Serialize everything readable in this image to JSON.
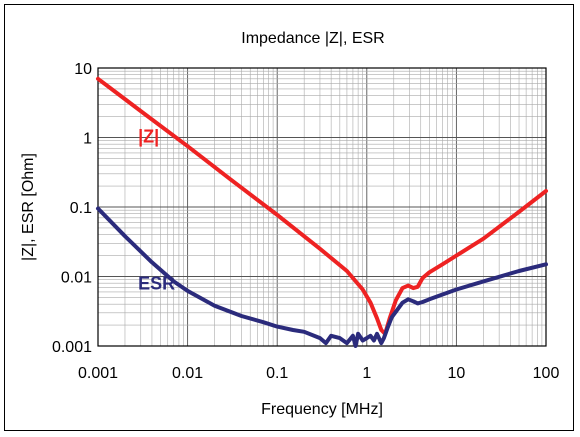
{
  "chart_data": {
    "type": "line",
    "title": "Impedance |Z|,  ESR",
    "xlabel": "Frequency [MHz]",
    "ylabel": "|Z|, ESR [Ohm]",
    "xscale": "log",
    "yscale": "log",
    "xlim": [
      0.001,
      100
    ],
    "ylim": [
      0.001,
      10
    ],
    "grid": true,
    "x_ticks": [
      "0.001",
      "0.01",
      "0.1",
      "1",
      "10",
      "100"
    ],
    "y_ticks": [
      "0.001",
      "0.01",
      "0.1",
      "1",
      "10"
    ],
    "series": [
      {
        "name": "|Z|",
        "color": "#ee2222",
        "x": [
          0.001,
          0.003,
          0.01,
          0.03,
          0.1,
          0.3,
          0.6,
          0.9,
          1.1,
          1.3,
          1.45,
          1.6,
          1.8,
          2.1,
          2.5,
          2.9,
          3.3,
          3.7,
          4.2,
          5,
          7,
          10,
          20,
          50,
          100
        ],
        "values": [
          7,
          2.4,
          0.75,
          0.25,
          0.077,
          0.025,
          0.012,
          0.0065,
          0.0042,
          0.0025,
          0.0017,
          0.0015,
          0.0025,
          0.0045,
          0.0068,
          0.0074,
          0.0068,
          0.0071,
          0.0095,
          0.0115,
          0.015,
          0.02,
          0.035,
          0.085,
          0.17
        ]
      },
      {
        "name": "ESR",
        "color": "#2b2b7c",
        "x": [
          0.001,
          0.002,
          0.004,
          0.007,
          0.01,
          0.02,
          0.04,
          0.07,
          0.1,
          0.15,
          0.2,
          0.3,
          0.35,
          0.4,
          0.5,
          0.6,
          0.7,
          0.75,
          0.8,
          0.9,
          1.0,
          1.1,
          1.2,
          1.3,
          1.45,
          1.55,
          1.7,
          1.9,
          2.1,
          2.5,
          2.9,
          3.3,
          3.7,
          4.2,
          5,
          7,
          10,
          20,
          50,
          100
        ],
        "values": [
          0.095,
          0.038,
          0.016,
          0.0085,
          0.0062,
          0.0038,
          0.0027,
          0.0022,
          0.0019,
          0.0017,
          0.0016,
          0.0013,
          0.0011,
          0.0014,
          0.0013,
          0.0011,
          0.0014,
          0.001,
          0.0015,
          0.0012,
          0.0013,
          0.0014,
          0.0012,
          0.0015,
          0.0011,
          0.0013,
          0.0018,
          0.0026,
          0.0031,
          0.0042,
          0.0047,
          0.0044,
          0.0041,
          0.0043,
          0.0047,
          0.0055,
          0.0065,
          0.0085,
          0.012,
          0.015
        ]
      }
    ]
  }
}
